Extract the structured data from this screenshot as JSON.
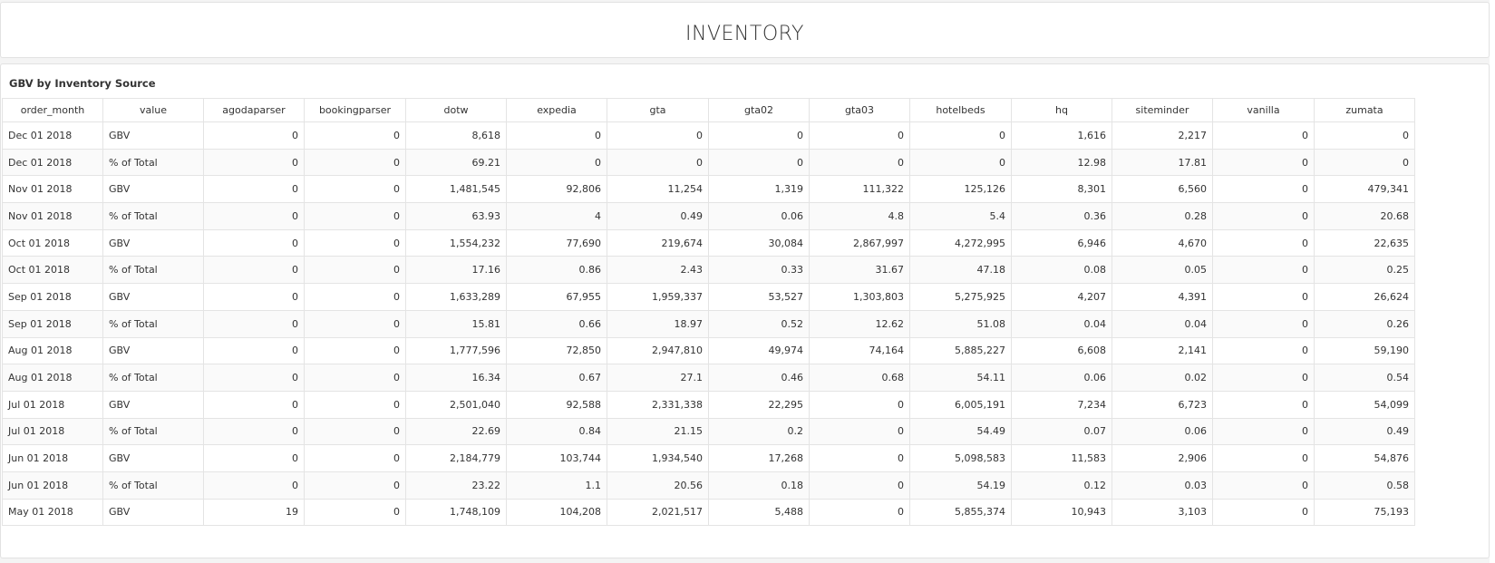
{
  "header": {
    "title": "INVENTORY"
  },
  "table": {
    "title": "GBV by Inventory Source",
    "columns": [
      "order_month",
      "value",
      "agodaparser",
      "bookingparser",
      "dotw",
      "expedia",
      "gta",
      "gta02",
      "gta03",
      "hotelbeds",
      "hq",
      "siteminder",
      "vanilla",
      "zumata"
    ],
    "rows": [
      [
        "Dec 01 2018",
        "GBV",
        "0",
        "0",
        "8,618",
        "0",
        "0",
        "0",
        "0",
        "0",
        "1,616",
        "2,217",
        "0",
        "0"
      ],
      [
        "Dec 01 2018",
        "% of Total",
        "0",
        "0",
        "69.21",
        "0",
        "0",
        "0",
        "0",
        "0",
        "12.98",
        "17.81",
        "0",
        "0"
      ],
      [
        "Nov 01 2018",
        "GBV",
        "0",
        "0",
        "1,481,545",
        "92,806",
        "11,254",
        "1,319",
        "111,322",
        "125,126",
        "8,301",
        "6,560",
        "0",
        "479,341"
      ],
      [
        "Nov 01 2018",
        "% of Total",
        "0",
        "0",
        "63.93",
        "4",
        "0.49",
        "0.06",
        "4.8",
        "5.4",
        "0.36",
        "0.28",
        "0",
        "20.68"
      ],
      [
        "Oct 01 2018",
        "GBV",
        "0",
        "0",
        "1,554,232",
        "77,690",
        "219,674",
        "30,084",
        "2,867,997",
        "4,272,995",
        "6,946",
        "4,670",
        "0",
        "22,635"
      ],
      [
        "Oct 01 2018",
        "% of Total",
        "0",
        "0",
        "17.16",
        "0.86",
        "2.43",
        "0.33",
        "31.67",
        "47.18",
        "0.08",
        "0.05",
        "0",
        "0.25"
      ],
      [
        "Sep 01 2018",
        "GBV",
        "0",
        "0",
        "1,633,289",
        "67,955",
        "1,959,337",
        "53,527",
        "1,303,803",
        "5,275,925",
        "4,207",
        "4,391",
        "0",
        "26,624"
      ],
      [
        "Sep 01 2018",
        "% of Total",
        "0",
        "0",
        "15.81",
        "0.66",
        "18.97",
        "0.52",
        "12.62",
        "51.08",
        "0.04",
        "0.04",
        "0",
        "0.26"
      ],
      [
        "Aug 01 2018",
        "GBV",
        "0",
        "0",
        "1,777,596",
        "72,850",
        "2,947,810",
        "49,974",
        "74,164",
        "5,885,227",
        "6,608",
        "2,141",
        "0",
        "59,190"
      ],
      [
        "Aug 01 2018",
        "% of Total",
        "0",
        "0",
        "16.34",
        "0.67",
        "27.1",
        "0.46",
        "0.68",
        "54.11",
        "0.06",
        "0.02",
        "0",
        "0.54"
      ],
      [
        "Jul 01 2018",
        "GBV",
        "0",
        "0",
        "2,501,040",
        "92,588",
        "2,331,338",
        "22,295",
        "0",
        "6,005,191",
        "7,234",
        "6,723",
        "0",
        "54,099"
      ],
      [
        "Jul 01 2018",
        "% of Total",
        "0",
        "0",
        "22.69",
        "0.84",
        "21.15",
        "0.2",
        "0",
        "54.49",
        "0.07",
        "0.06",
        "0",
        "0.49"
      ],
      [
        "Jun 01 2018",
        "GBV",
        "0",
        "0",
        "2,184,779",
        "103,744",
        "1,934,540",
        "17,268",
        "0",
        "5,098,583",
        "11,583",
        "2,906",
        "0",
        "54,876"
      ],
      [
        "Jun 01 2018",
        "% of Total",
        "0",
        "0",
        "23.22",
        "1.1",
        "20.56",
        "0.18",
        "0",
        "54.19",
        "0.12",
        "0.03",
        "0",
        "0.58"
      ],
      [
        "May 01 2018",
        "GBV",
        "19",
        "0",
        "1,748,109",
        "104,208",
        "2,021,517",
        "5,488",
        "0",
        "5,855,374",
        "10,943",
        "3,103",
        "0",
        "75,193"
      ]
    ]
  }
}
